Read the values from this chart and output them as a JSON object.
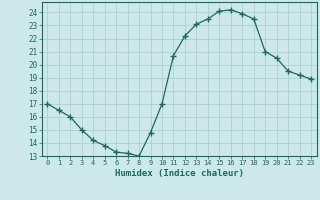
{
  "x": [
    0,
    1,
    2,
    3,
    4,
    5,
    6,
    7,
    8,
    9,
    10,
    11,
    12,
    13,
    14,
    15,
    16,
    17,
    18,
    19,
    20,
    21,
    22,
    23
  ],
  "y": [
    17.0,
    16.5,
    16.0,
    15.0,
    14.2,
    13.8,
    13.3,
    13.2,
    13.0,
    14.8,
    17.0,
    20.7,
    22.2,
    23.1,
    23.5,
    24.1,
    24.2,
    23.9,
    23.5,
    21.0,
    20.5,
    19.5,
    19.2,
    18.9
  ],
  "line_color": "#1a6b5a",
  "marker": "+",
  "marker_size": 4,
  "bg_color": "#cce8e8",
  "grid_color": "#b0d4d4",
  "xlabel": "Humidex (Indice chaleur)",
  "xlim": [
    -0.5,
    23.5
  ],
  "ylim": [
    13,
    24.8
  ],
  "yticks": [
    13,
    14,
    15,
    16,
    17,
    18,
    19,
    20,
    21,
    22,
    23,
    24
  ],
  "xticks": [
    0,
    1,
    2,
    3,
    4,
    5,
    6,
    7,
    8,
    9,
    10,
    11,
    12,
    13,
    14,
    15,
    16,
    17,
    18,
    19,
    20,
    21,
    22,
    23
  ]
}
